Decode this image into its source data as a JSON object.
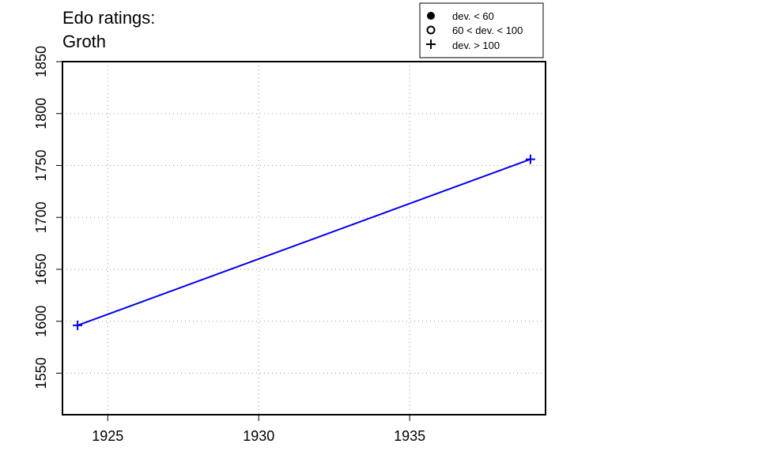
{
  "chart_data": {
    "type": "line",
    "title": "Edo ratings:",
    "subtitle": "Groth",
    "xlabel": "",
    "ylabel": "",
    "xlim": [
      1923.5,
      1939.5
    ],
    "ylim": [
      1510,
      1850
    ],
    "x_ticks": [
      1925,
      1930,
      1935
    ],
    "y_ticks": [
      1550,
      1600,
      1650,
      1700,
      1750,
      1800,
      1850
    ],
    "grid": true,
    "legend_position": "top-right",
    "legend": [
      {
        "symbol": "filled-circle",
        "label": "dev. < 60"
      },
      {
        "symbol": "open-circle",
        "label": "60 < dev. < 100"
      },
      {
        "symbol": "plus",
        "label": "dev. > 100"
      }
    ],
    "series": [
      {
        "color": "#0000ee",
        "marker": "plus",
        "x": [
          1924,
          1939
        ],
        "y": [
          1596,
          1756
        ]
      }
    ]
  }
}
